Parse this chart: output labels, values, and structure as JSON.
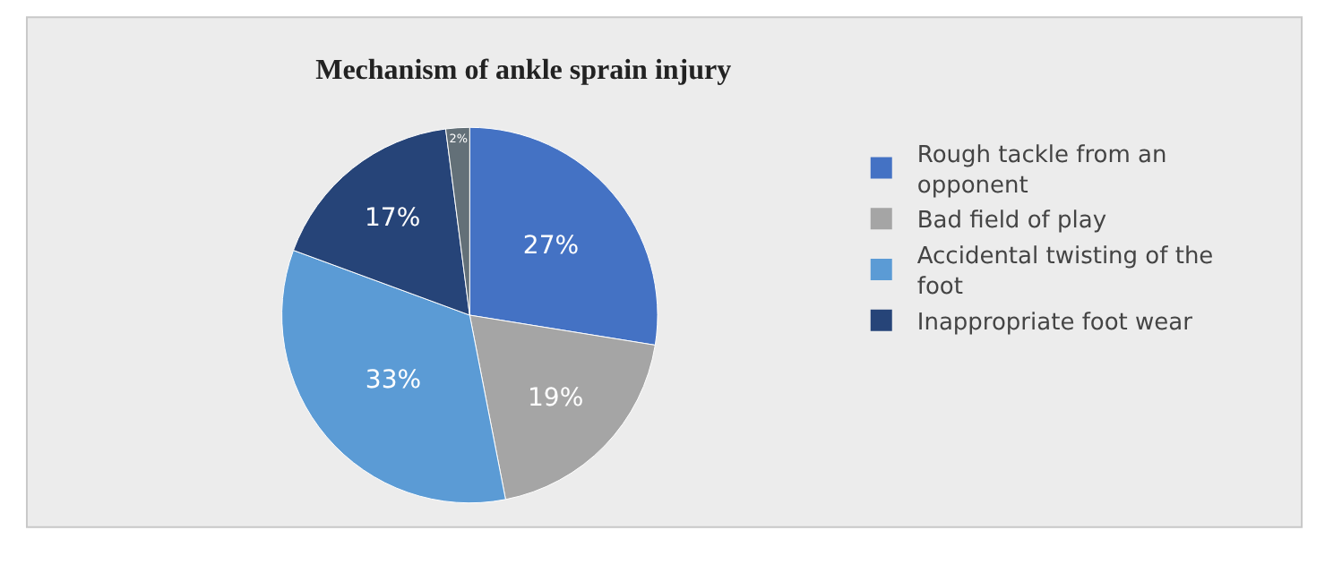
{
  "chart_data": {
    "type": "pie",
    "title": "Mechanism of ankle sprain injury",
    "categories": [
      "Rough tackle from an opponent",
      "Bad field of play",
      "Accidental twisting of the foot",
      "Inappropriate foot wear",
      null
    ],
    "values": [
      27,
      19,
      33,
      17,
      2
    ],
    "value_labels": [
      "27%",
      "19%",
      "33%",
      "17%",
      "2%"
    ],
    "colors": [
      "#4472c4",
      "#a5a5a5",
      "#5b9bd5",
      "#264478",
      "#637078"
    ],
    "legend": "right"
  }
}
